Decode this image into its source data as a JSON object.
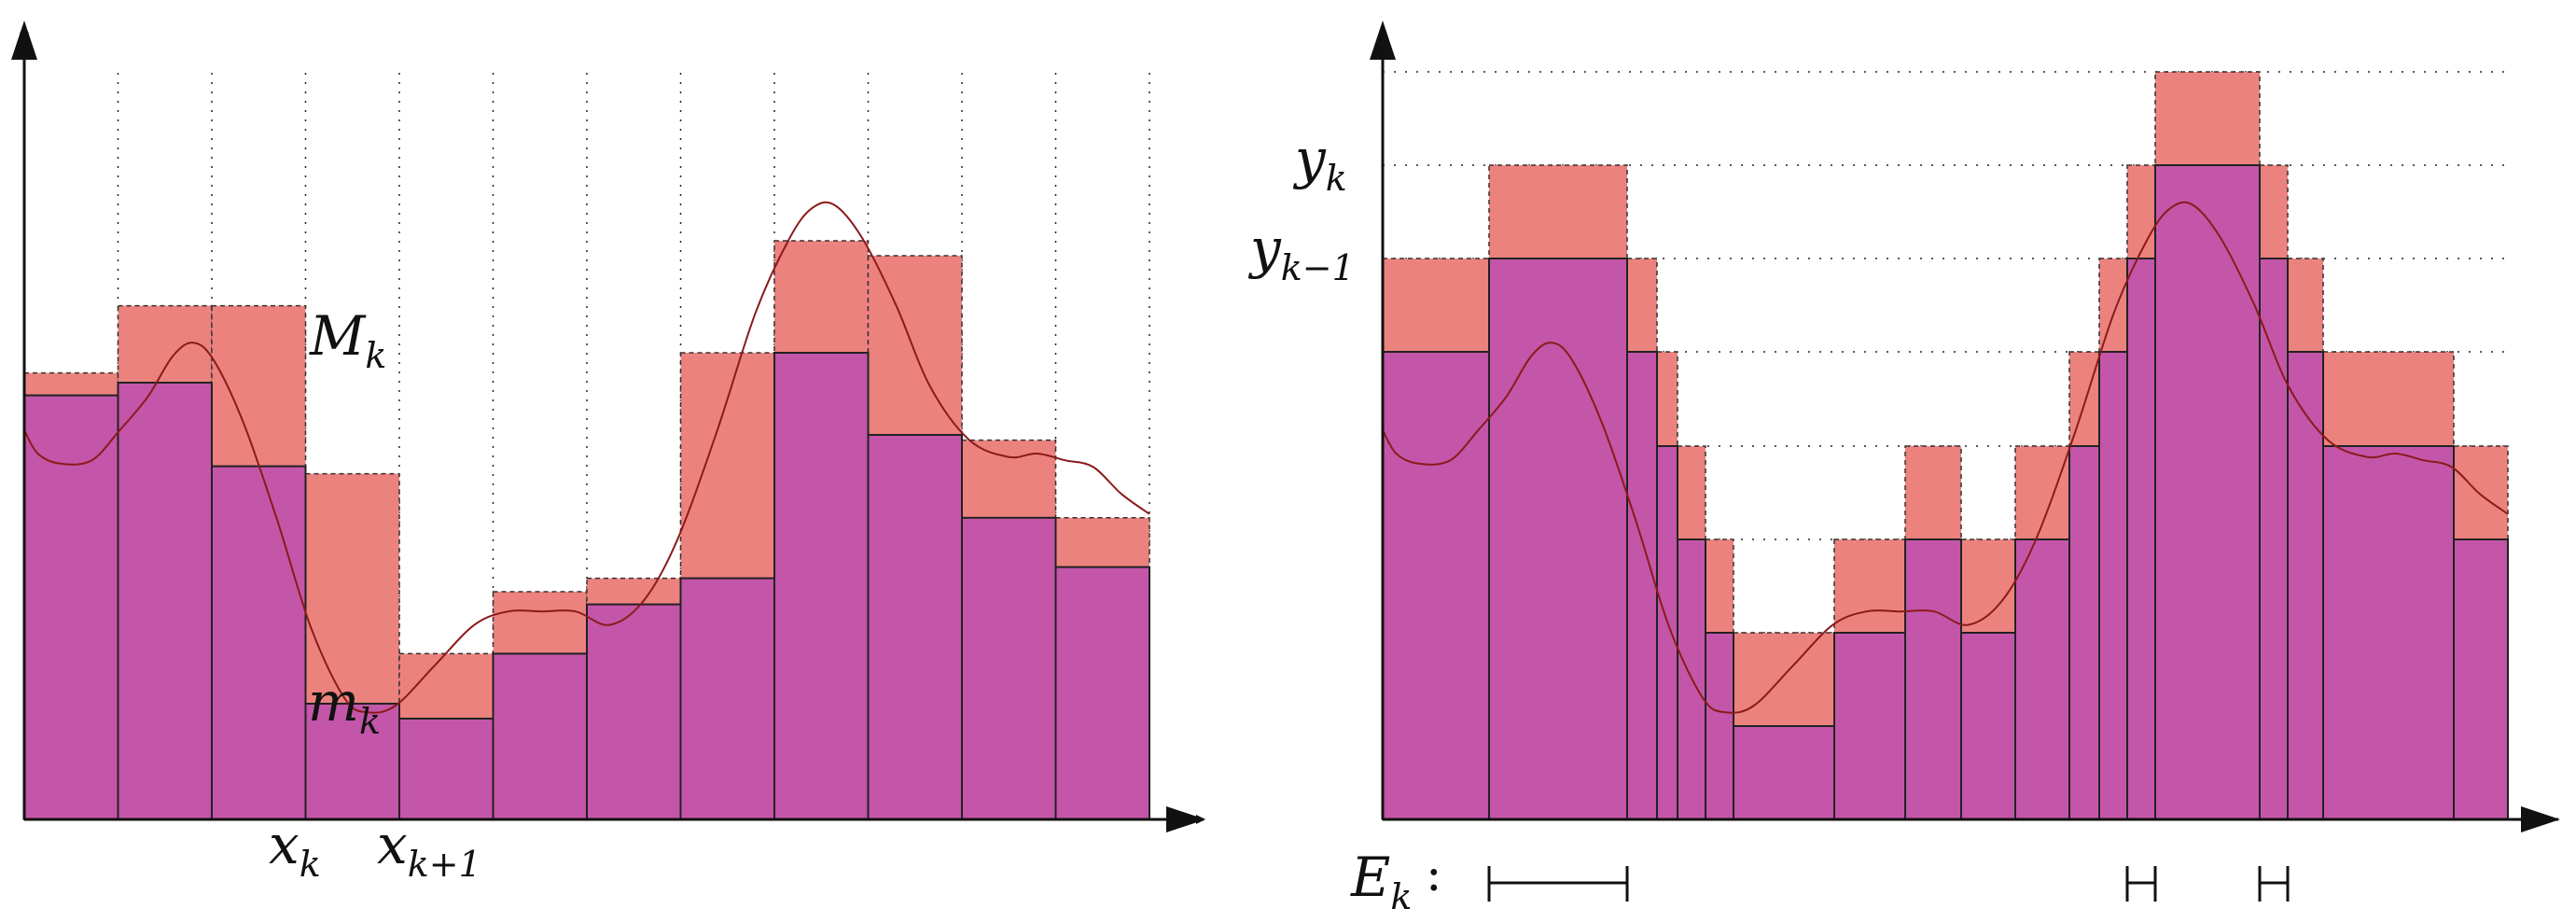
{
  "colors": {
    "upper_fill": "#ec827e",
    "lower_fill": "#c356a8",
    "curve": "#8b1a1a",
    "axis": "#111111",
    "grid": "#222222"
  },
  "left_panel": {
    "upper_label": "M",
    "upper_label_sub": "k",
    "lower_label": "m",
    "lower_label_sub": "k",
    "xk_label": "x",
    "xk_label_sub": "k",
    "xk1_label": "x",
    "xk1_label_sub": "k+1"
  },
  "right_panel": {
    "yk_label": "y",
    "yk_label_sub": "k",
    "yk1_label": "y",
    "yk1_label_sub": "k−1",
    "ek_label": "E",
    "ek_label_sub": "k",
    "ek_colon": ":"
  }
}
